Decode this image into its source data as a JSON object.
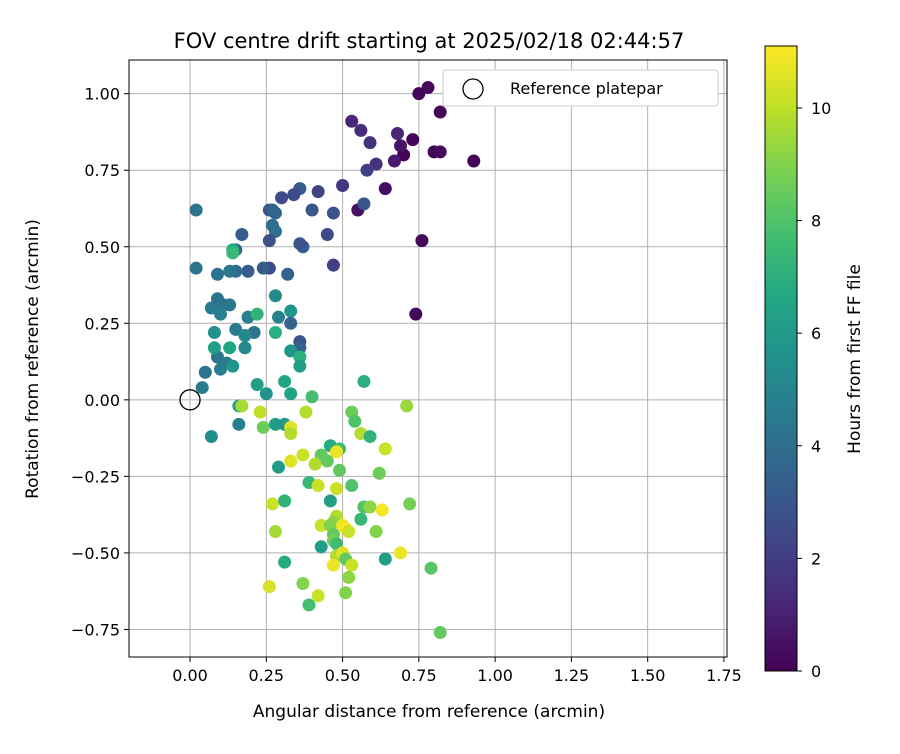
{
  "chart_data": {
    "type": "scatter",
    "title": "FOV centre drift starting at 2025/02/18 02:44:57",
    "xlabel": "Angular distance from reference (arcmin)",
    "ylabel": "Rotation from reference (arcmin)",
    "xlim": [
      -0.2,
      1.76
    ],
    "ylim": [
      -0.84,
      1.11
    ],
    "xticks": [
      0.0,
      0.25,
      0.5,
      0.75,
      1.0,
      1.25,
      1.5,
      1.75
    ],
    "xtick_labels": [
      "0.00",
      "0.25",
      "0.50",
      "0.75",
      "1.00",
      "1.25",
      "1.50",
      "1.75"
    ],
    "yticks": [
      -0.75,
      -0.5,
      -0.25,
      0.0,
      0.25,
      0.5,
      0.75,
      1.0
    ],
    "ytick_labels": [
      "−0.75",
      "−0.50",
      "−0.25",
      "0.00",
      "0.25",
      "0.50",
      "0.75",
      "1.00"
    ],
    "grid": true,
    "legend": {
      "label": "Reference platepar",
      "placement": "top-right"
    },
    "reference_point": {
      "x": 0.0,
      "y": 0.0
    },
    "colorbar": {
      "label": "Hours from first FF file",
      "colormap": "viridis",
      "range": [
        0,
        11.1
      ],
      "ticks": [
        0,
        2,
        4,
        6,
        8,
        10
      ],
      "tick_labels": [
        "0",
        "2",
        "4",
        "6",
        "8",
        "10"
      ]
    },
    "points": [
      [
        0.78,
        1.02,
        0.2
      ],
      [
        0.75,
        1.0,
        0.1
      ],
      [
        0.73,
        0.85,
        0.1
      ],
      [
        0.82,
        0.94,
        0.2
      ],
      [
        0.8,
        0.81,
        0.1
      ],
      [
        0.82,
        0.81,
        0.3
      ],
      [
        0.93,
        0.78,
        0.1
      ],
      [
        0.7,
        0.8,
        0.1
      ],
      [
        0.69,
        0.83,
        0.6
      ],
      [
        0.68,
        0.87,
        1.2
      ],
      [
        0.67,
        0.78,
        0.8
      ],
      [
        0.64,
        0.69,
        0.4
      ],
      [
        0.76,
        0.52,
        0.2
      ],
      [
        0.74,
        0.28,
        0.2
      ],
      [
        0.55,
        0.62,
        0.5
      ],
      [
        0.53,
        0.91,
        1.2
      ],
      [
        0.56,
        0.88,
        1.4
      ],
      [
        0.59,
        0.84,
        1.6
      ],
      [
        0.61,
        0.77,
        1.6
      ],
      [
        0.58,
        0.75,
        2.0
      ],
      [
        0.5,
        0.7,
        1.8
      ],
      [
        0.47,
        0.61,
        2.8
      ],
      [
        0.42,
        0.68,
        2.2
      ],
      [
        0.57,
        0.64,
        3.0
      ],
      [
        0.36,
        0.69,
        3.2
      ],
      [
        0.34,
        0.67,
        2.6
      ],
      [
        0.3,
        0.66,
        2.4
      ],
      [
        0.4,
        0.62,
        3.0
      ],
      [
        0.45,
        0.54,
        2.4
      ],
      [
        0.47,
        0.44,
        2.0
      ],
      [
        0.37,
        0.5,
        3.2
      ],
      [
        0.36,
        0.51,
        2.8
      ],
      [
        0.26,
        0.62,
        2.8
      ],
      [
        0.27,
        0.62,
        3.4
      ],
      [
        0.28,
        0.61,
        3.6
      ],
      [
        0.27,
        0.57,
        4.0
      ],
      [
        0.28,
        0.55,
        4.0
      ],
      [
        0.26,
        0.52,
        2.8
      ],
      [
        0.26,
        0.43,
        2.6
      ],
      [
        0.24,
        0.43,
        3.2
      ],
      [
        0.32,
        0.41,
        3.4
      ],
      [
        0.19,
        0.42,
        3.2
      ],
      [
        0.17,
        0.54,
        3.2
      ],
      [
        0.15,
        0.49,
        3.6
      ],
      [
        0.15,
        0.42,
        3.8
      ],
      [
        0.13,
        0.42,
        4.4
      ],
      [
        0.02,
        0.62,
        4.2
      ],
      [
        0.02,
        0.43,
        4.2
      ],
      [
        0.09,
        0.41,
        4.2
      ],
      [
        0.11,
        0.31,
        4.2
      ],
      [
        0.07,
        0.3,
        4.6
      ],
      [
        0.09,
        0.33,
        4.2
      ],
      [
        0.13,
        0.31,
        4.4
      ],
      [
        0.1,
        0.28,
        4.8
      ],
      [
        0.19,
        0.27,
        4.8
      ],
      [
        0.15,
        0.23,
        4.6
      ],
      [
        0.21,
        0.22,
        4.2
      ],
      [
        0.18,
        0.21,
        5.2
      ],
      [
        0.09,
        0.14,
        4.2
      ],
      [
        0.12,
        0.12,
        4.6
      ],
      [
        0.1,
        0.1,
        4.6
      ],
      [
        0.05,
        0.09,
        4.2
      ],
      [
        0.04,
        0.04,
        4.6
      ],
      [
        0.18,
        0.17,
        5.2
      ],
      [
        0.14,
        0.11,
        5.8
      ],
      [
        0.13,
        0.17,
        6.6
      ],
      [
        0.08,
        0.22,
        5.6
      ],
      [
        0.08,
        0.17,
        6.2
      ],
      [
        0.14,
        0.49,
        6.6
      ],
      [
        0.14,
        0.48,
        7.4
      ],
      [
        0.22,
        0.28,
        7.2
      ],
      [
        0.28,
        0.34,
        5.2
      ],
      [
        0.33,
        0.29,
        5.8
      ],
      [
        0.29,
        0.27,
        4.8
      ],
      [
        0.33,
        0.25,
        3.6
      ],
      [
        0.28,
        0.22,
        7.0
      ],
      [
        0.36,
        0.19,
        2.8
      ],
      [
        0.36,
        0.17,
        3.4
      ],
      [
        0.33,
        0.16,
        5.8
      ],
      [
        0.36,
        0.14,
        7.0
      ],
      [
        0.36,
        0.11,
        6.2
      ],
      [
        0.31,
        0.06,
        6.6
      ],
      [
        0.22,
        0.05,
        6.2
      ],
      [
        0.25,
        0.02,
        5.6
      ],
      [
        0.33,
        0.02,
        6.4
      ],
      [
        0.4,
        0.01,
        7.8
      ],
      [
        0.07,
        -0.12,
        5.4
      ],
      [
        0.16,
        -0.02,
        6.4
      ],
      [
        0.17,
        -0.02,
        9.6
      ],
      [
        0.16,
        -0.08,
        4.8
      ],
      [
        0.23,
        -0.04,
        10.0
      ],
      [
        0.24,
        -0.09,
        8.6
      ],
      [
        0.28,
        -0.08,
        6.2
      ],
      [
        0.31,
        -0.08,
        5.8
      ],
      [
        0.33,
        -0.09,
        10.6
      ],
      [
        0.33,
        -0.11,
        9.8
      ],
      [
        0.38,
        -0.04,
        9.8
      ],
      [
        0.57,
        0.06,
        7.0
      ],
      [
        0.53,
        -0.04,
        8.6
      ],
      [
        0.54,
        -0.07,
        8.0
      ],
      [
        0.56,
        -0.11,
        9.8
      ],
      [
        0.59,
        -0.12,
        7.2
      ],
      [
        0.71,
        -0.02,
        9.4
      ],
      [
        0.64,
        -0.16,
        10.2
      ],
      [
        0.46,
        -0.15,
        6.8
      ],
      [
        0.49,
        -0.16,
        7.6
      ],
      [
        0.48,
        -0.17,
        10.8
      ],
      [
        0.43,
        -0.18,
        8.4
      ],
      [
        0.37,
        -0.18,
        10.2
      ],
      [
        0.33,
        -0.2,
        10.6
      ],
      [
        0.29,
        -0.22,
        6.0
      ],
      [
        0.41,
        -0.21,
        9.8
      ],
      [
        0.45,
        -0.2,
        8.4
      ],
      [
        0.49,
        -0.23,
        8.4
      ],
      [
        0.62,
        -0.24,
        8.6
      ],
      [
        0.39,
        -0.27,
        7.4
      ],
      [
        0.42,
        -0.28,
        10.2
      ],
      [
        0.48,
        -0.29,
        10.2
      ],
      [
        0.53,
        -0.28,
        8.0
      ],
      [
        0.46,
        -0.33,
        6.2
      ],
      [
        0.27,
        -0.34,
        10.2
      ],
      [
        0.31,
        -0.33,
        7.2
      ],
      [
        0.57,
        -0.35,
        8.0
      ],
      [
        0.59,
        -0.35,
        9.2
      ],
      [
        0.63,
        -0.36,
        11.0
      ],
      [
        0.72,
        -0.34,
        8.8
      ],
      [
        0.56,
        -0.39,
        7.4
      ],
      [
        0.48,
        -0.38,
        9.8
      ],
      [
        0.47,
        -0.4,
        9.2
      ],
      [
        0.43,
        -0.41,
        10.2
      ],
      [
        0.46,
        -0.41,
        9.0
      ],
      [
        0.5,
        -0.41,
        10.8
      ],
      [
        0.51,
        -0.42,
        11.0
      ],
      [
        0.52,
        -0.43,
        10.2
      ],
      [
        0.61,
        -0.43,
        9.0
      ],
      [
        0.28,
        -0.43,
        9.6
      ],
      [
        0.43,
        -0.48,
        6.2
      ],
      [
        0.47,
        -0.44,
        8.4
      ],
      [
        0.47,
        -0.46,
        8.8
      ],
      [
        0.48,
        -0.47,
        7.6
      ],
      [
        0.48,
        -0.51,
        9.8
      ],
      [
        0.5,
        -0.5,
        10.6
      ],
      [
        0.69,
        -0.5,
        10.8
      ],
      [
        0.64,
        -0.52,
        6.2
      ],
      [
        0.51,
        -0.52,
        8.4
      ],
      [
        0.31,
        -0.53,
        6.8
      ],
      [
        0.53,
        -0.54,
        10.2
      ],
      [
        0.47,
        -0.54,
        10.8
      ],
      [
        0.52,
        -0.58,
        9.2
      ],
      [
        0.79,
        -0.55,
        8.2
      ],
      [
        0.26,
        -0.61,
        10.4
      ],
      [
        0.37,
        -0.6,
        9.0
      ],
      [
        0.42,
        -0.64,
        10.2
      ],
      [
        0.51,
        -0.63,
        9.0
      ],
      [
        0.39,
        -0.67,
        7.8
      ],
      [
        0.82,
        -0.76,
        8.4
      ]
    ]
  }
}
